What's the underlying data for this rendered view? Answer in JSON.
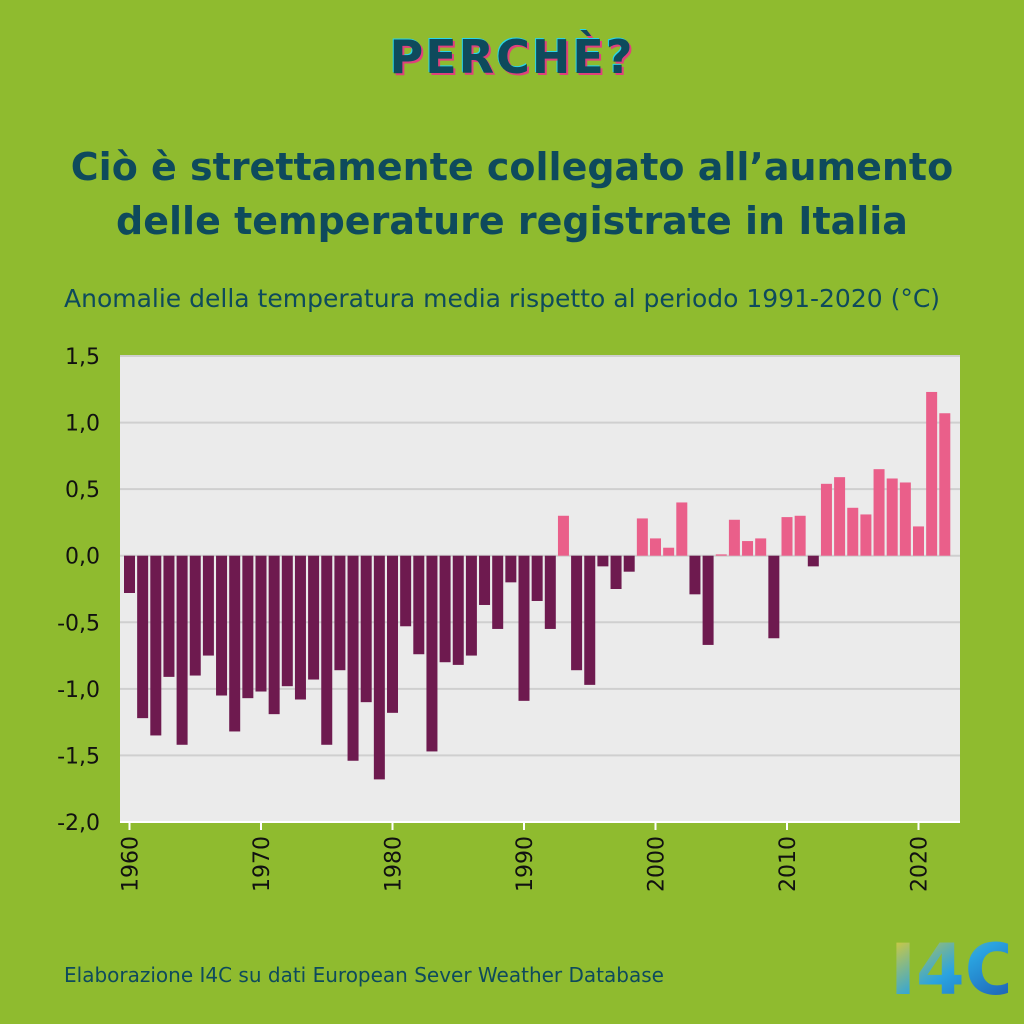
{
  "header": {
    "kicker": "PERCHÈ?",
    "title": "Ciò è strettamente collegato all’aumento delle temperature registrate in Italia"
  },
  "chart_data": {
    "type": "bar",
    "title": "Anomalie della temperatura media rispetto al periodo 1991-2020 (°C)",
    "xlabel": "",
    "ylabel": "",
    "ylim": [
      -2.0,
      1.5
    ],
    "yticks": [
      "1,5",
      "1,0",
      "0,5",
      "0,0",
      "-0,5",
      "-1,0",
      "-1,5",
      "-2,0"
    ],
    "ytick_values": [
      1.5,
      1.0,
      0.5,
      0.0,
      -0.5,
      -1.0,
      -1.5,
      -2.0
    ],
    "xticks": [
      "1960",
      "1970",
      "1980",
      "1990",
      "2000",
      "2010",
      "2020"
    ],
    "xtick_values": [
      1960,
      1970,
      1980,
      1990,
      2000,
      2010,
      2020
    ],
    "grid": true,
    "colors": {
      "negative": "#6e1a4f",
      "positive": "#ea5f8a",
      "plot_bg": "#ebebeb",
      "grid": "#cfcfcf"
    },
    "years": [
      1960,
      1961,
      1962,
      1963,
      1964,
      1965,
      1966,
      1967,
      1968,
      1969,
      1970,
      1971,
      1972,
      1973,
      1974,
      1975,
      1976,
      1977,
      1978,
      1979,
      1980,
      1981,
      1982,
      1983,
      1984,
      1985,
      1986,
      1987,
      1988,
      1989,
      1990,
      1991,
      1992,
      1993,
      1994,
      1995,
      1996,
      1997,
      1998,
      1999,
      2000,
      2001,
      2002,
      2003,
      2004,
      2005,
      2006,
      2007,
      2008,
      2009,
      2010,
      2011,
      2012,
      2013,
      2014,
      2015,
      2016,
      2017,
      2018,
      2019,
      2020,
      2021,
      2022
    ],
    "values": [
      -0.28,
      -1.22,
      -1.35,
      -0.91,
      -1.42,
      -0.9,
      -0.75,
      -1.05,
      -1.32,
      -1.07,
      -1.02,
      -1.19,
      -0.98,
      -1.08,
      -0.93,
      -1.42,
      -0.86,
      -1.54,
      -1.1,
      -1.68,
      -1.18,
      -0.53,
      -0.74,
      -1.47,
      -0.8,
      -0.82,
      -0.75,
      -0.37,
      -0.55,
      -0.2,
      -1.09,
      -0.34,
      -0.55,
      0.3,
      -0.86,
      -0.97,
      -0.08,
      -0.25,
      -0.12,
      0.28,
      0.13,
      0.06,
      0.4,
      -0.29,
      -0.67,
      0.01,
      0.27,
      0.11,
      0.13,
      -0.62,
      0.29,
      0.3,
      -0.08,
      0.54,
      0.59,
      0.36,
      0.31,
      0.65,
      0.58,
      0.55,
      0.22,
      1.23,
      1.07
    ]
  },
  "footer": {
    "source": "Elaborazione I4C su dati European Sever Weather Database"
  },
  "logo": {
    "text": "I4C",
    "colors": [
      "#f2d21e",
      "#2aa3e0",
      "#1b4fa8"
    ]
  }
}
